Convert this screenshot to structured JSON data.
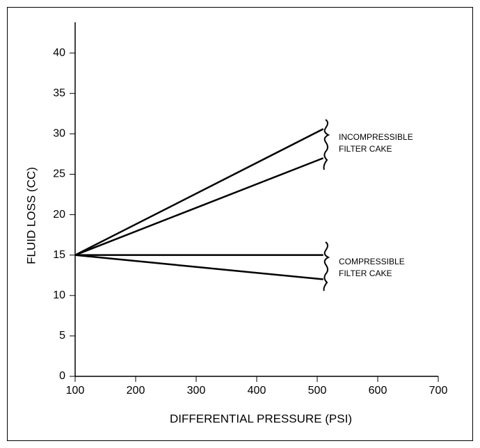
{
  "chart_data": {
    "type": "line",
    "xlabel": "DIFFERENTIAL PRESSURE (PSI)",
    "ylabel": "FLUID LOSS (CC)",
    "x": [
      100,
      510
    ],
    "series": [
      {
        "color": "#000000",
        "values": [
          15,
          30.6
        ]
      },
      {
        "color": "#000000",
        "values": [
          15,
          27
        ]
      },
      {
        "color": "#000000",
        "values": [
          15,
          15
        ]
      },
      {
        "color": "#000000",
        "values": [
          15,
          12
        ]
      }
    ],
    "xlim": [
      100,
      700
    ],
    "xticks": [
      100,
      200,
      300,
      400,
      500,
      600,
      700
    ],
    "ylim": [
      0,
      43.8
    ],
    "yticks": [
      0,
      5,
      10,
      15,
      20,
      25,
      30,
      35,
      40
    ],
    "grid": false,
    "annotations": [
      [
        "INCOMPRESSIBLE",
        "FILTER CAKE"
      ],
      [
        "COMPRESSIBLE",
        "FILTER CAKE"
      ]
    ]
  }
}
